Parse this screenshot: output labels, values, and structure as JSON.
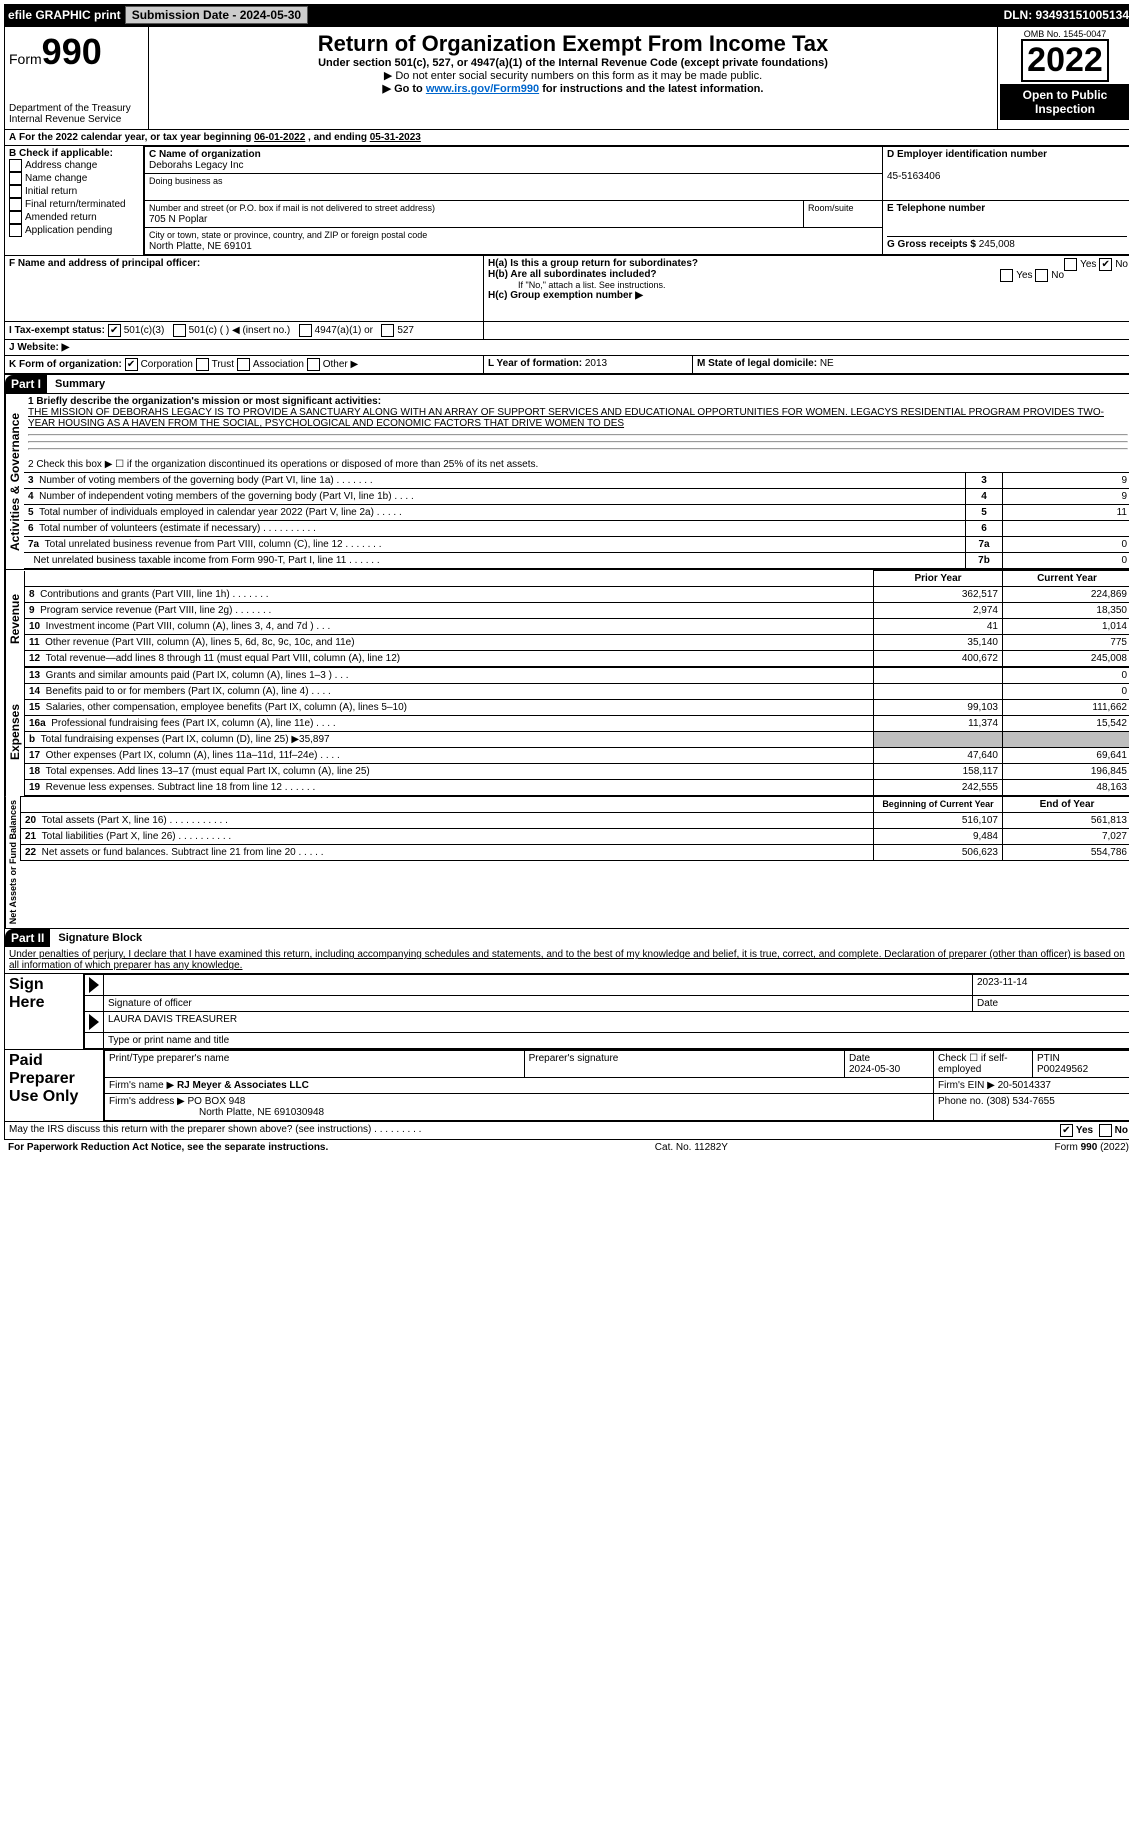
{
  "topbar": {
    "efile": "efile GRAPHIC print",
    "submission_label": "Submission Date - 2024-05-30",
    "dln_label": "DLN: 93493151005134"
  },
  "header": {
    "form_word": "Form",
    "form_num": "990",
    "title": "Return of Organization Exempt From Income Tax",
    "sub1": "Under section 501(c), 527, or 4947(a)(1) of the Internal Revenue Code (except private foundations)",
    "sub2": "▶ Do not enter social security numbers on this form as it may be made public.",
    "sub3_pre": "▶ Go to ",
    "sub3_link": "www.irs.gov/Form990",
    "sub3_post": " for instructions and the latest information.",
    "dept": "Department of the Treasury",
    "irs": "Internal Revenue Service",
    "omb": "OMB No. 1545-0047",
    "year": "2022",
    "open": "Open to Public Inspection"
  },
  "lineA": {
    "text_pre": "For the 2022 calendar year, or tax year beginning ",
    "begin": "06-01-2022",
    "mid": " , and ending ",
    "end": "05-31-2023"
  },
  "boxB": {
    "label": "B Check if applicable:",
    "items": [
      "Address change",
      "Name change",
      "Initial return",
      "Final return/terminated",
      "Amended return",
      "Application pending"
    ]
  },
  "boxC": {
    "label": "C Name of organization",
    "name": "Deborahs Legacy Inc",
    "dba_label": "Doing business as",
    "street_label": "Number and street (or P.O. box if mail is not delivered to street address)",
    "room_label": "Room/suite",
    "street": "705 N Poplar",
    "city_label": "City or town, state or province, country, and ZIP or foreign postal code",
    "city": "North Platte, NE  69101"
  },
  "boxD": {
    "label": "D Employer identification number",
    "value": "45-5163406"
  },
  "boxE": {
    "label": "E Telephone number"
  },
  "boxG": {
    "label": "G Gross receipts $",
    "value": "245,008"
  },
  "boxF": {
    "label": "F Name and address of principal officer:"
  },
  "boxH": {
    "a": "H(a)  Is this a group return for subordinates?",
    "b": "H(b)  Are all subordinates included?",
    "b_note": "If \"No,\" attach a list. See instructions.",
    "c": "H(c)  Group exemption number ▶",
    "yes": "Yes",
    "no": "No"
  },
  "boxI": {
    "label": "I   Tax-exempt status:",
    "opt1": "501(c)(3)",
    "opt2": "501(c) (  ) ◀ (insert no.)",
    "opt3": "4947(a)(1) or",
    "opt4": "527"
  },
  "boxJ": {
    "label": "J   Website: ▶"
  },
  "boxK": {
    "label": "K Form of organization:",
    "opts": [
      "Corporation",
      "Trust",
      "Association",
      "Other ▶"
    ]
  },
  "boxL": {
    "label": "L Year of formation:",
    "value": "2013"
  },
  "boxM": {
    "label": "M State of legal domicile:",
    "value": "NE"
  },
  "part1": {
    "tag": "Part I",
    "title": "Summary"
  },
  "mission": {
    "label": "1  Briefly describe the organization's mission or most significant activities:",
    "text": "THE MISSION OF DEBORAHS LEGACY IS TO PROVIDE A SANCTUARY ALONG WITH AN ARRAY OF SUPPORT SERVICES AND EDUCATIONAL OPPORTUNITIES FOR WOMEN. LEGACYS RESIDENTIAL PROGRAM PROVIDES TWO-YEAR HOUSING AS A HAVEN FROM THE SOCIAL, PSYCHOLOGICAL AND ECONOMIC FACTORS THAT DRIVE WOMEN TO DES"
  },
  "line2": "2   Check this box ▶ ☐ if the organization discontinued its operations or disposed of more than 25% of its net assets.",
  "vlabels": {
    "gov": "Activities & Governance",
    "rev": "Revenue",
    "exp": "Expenses",
    "net": "Net Assets or Fund Balances"
  },
  "gov_rows": [
    {
      "n": "3",
      "t": "Number of voting members of the governing body (Part VI, line 1a)   .     .     .     .     .     .     .",
      "box": "3",
      "v": "9"
    },
    {
      "n": "4",
      "t": "Number of independent voting members of the governing body (Part VI, line 1b)    .     .     .     .",
      "box": "4",
      "v": "9"
    },
    {
      "n": "5",
      "t": "Total number of individuals employed in calendar year 2022 (Part V, line 2a)   .     .     .     .     .",
      "box": "5",
      "v": "11"
    },
    {
      "n": "6",
      "t": "Total number of volunteers (estimate if necessary)    .     .     .     .     .     .     .     .     .     .",
      "box": "6",
      "v": ""
    },
    {
      "n": "7a",
      "t": "Total unrelated business revenue from Part VIII, column (C), line 12  .     .     .     .     .     .     .",
      "box": "7a",
      "v": "0"
    },
    {
      "n": "",
      "t": "Net unrelated business taxable income from Form 990-T, Part I, line 11   .     .     .     .     .     .",
      "box": "7b",
      "v": "0"
    }
  ],
  "col_headers": {
    "prior": "Prior Year",
    "current": "Current Year"
  },
  "rev_rows": [
    {
      "n": "8",
      "t": "Contributions and grants (Part VIII, line 1h)   .     .     .     .     .     .     .",
      "p": "362,517",
      "c": "224,869"
    },
    {
      "n": "9",
      "t": "Program service revenue (Part VIII, line 2g)   .     .     .     .     .     .     .",
      "p": "2,974",
      "c": "18,350"
    },
    {
      "n": "10",
      "t": "Investment income (Part VIII, column (A), lines 3, 4, and 7d )    .     .     .",
      "p": "41",
      "c": "1,014"
    },
    {
      "n": "11",
      "t": "Other revenue (Part VIII, column (A), lines 5, 6d, 8c, 9c, 10c, and 11e)",
      "p": "35,140",
      "c": "775"
    },
    {
      "n": "12",
      "t": "Total revenue—add lines 8 through 11 (must equal Part VIII, column (A), line 12)",
      "p": "400,672",
      "c": "245,008"
    }
  ],
  "exp_rows": [
    {
      "n": "13",
      "t": "Grants and similar amounts paid (Part IX, column (A), lines 1–3 )    .     .     .",
      "p": "",
      "c": "0"
    },
    {
      "n": "14",
      "t": "Benefits paid to or for members (Part IX, column (A), line 4)   .     .     .     .",
      "p": "",
      "c": "0"
    },
    {
      "n": "15",
      "t": "Salaries, other compensation, employee benefits (Part IX, column (A), lines 5–10)",
      "p": "99,103",
      "c": "111,662"
    },
    {
      "n": "16a",
      "t": "Professional fundraising fees (Part IX, column (A), line 11e)    .     .     .     .",
      "p": "11,374",
      "c": "15,542"
    },
    {
      "n": "b",
      "t": "Total fundraising expenses (Part IX, column (D), line 25) ▶35,897",
      "p": "GRAY",
      "c": "GRAY"
    },
    {
      "n": "17",
      "t": "Other expenses (Part IX, column (A), lines 11a–11d, 11f–24e)    .     .     .     .",
      "p": "47,640",
      "c": "69,641"
    },
    {
      "n": "18",
      "t": "Total expenses. Add lines 13–17 (must equal Part IX, column (A), line 25)",
      "p": "158,117",
      "c": "196,845"
    },
    {
      "n": "19",
      "t": "Revenue less expenses. Subtract line 18 from line 12   .     .     .     .     .     .",
      "p": "242,555",
      "c": "48,163"
    }
  ],
  "net_headers": {
    "begin": "Beginning of Current Year",
    "end": "End of Year"
  },
  "net_rows": [
    {
      "n": "20",
      "t": "Total assets (Part X, line 16)   .     .     .     .     .     .     .     .     .     .     .",
      "p": "516,107",
      "c": "561,813"
    },
    {
      "n": "21",
      "t": "Total liabilities (Part X, line 26)    .     .     .     .     .     .     .     .     .     .",
      "p": "9,484",
      "c": "7,027"
    },
    {
      "n": "22",
      "t": "Net assets or fund balances. Subtract line 21 from line 20   .     .     .     .     .",
      "p": "506,623",
      "c": "554,786"
    }
  ],
  "part2": {
    "tag": "Part II",
    "title": "Signature Block"
  },
  "perjury": "Under penalties of perjury, I declare that I have examined this return, including accompanying schedules and statements, and to the best of my knowledge and belief, it is true, correct, and complete. Declaration of preparer (other than officer) is based on all information of which preparer has any knowledge.",
  "sign": {
    "here": "Sign Here",
    "sig_officer": "Signature of officer",
    "date": "Date",
    "date_val": "2023-11-14",
    "name": "LAURA DAVIS  TREASURER",
    "name_label": "Type or print name and title"
  },
  "preparer": {
    "label": "Paid Preparer Use Only",
    "h1": "Print/Type preparer's name",
    "h2": "Preparer's signature",
    "h3": "Date",
    "h3v": "2024-05-30",
    "h4": "Check ☐ if self-employed",
    "h5": "PTIN",
    "h5v": "P00249562",
    "firm_name_l": "Firm's name    ▶",
    "firm_name": "RJ Meyer & Associates LLC",
    "firm_ein_l": "Firm's EIN ▶",
    "firm_ein": "20-5014337",
    "firm_addr_l": "Firm's address ▶",
    "firm_addr": "PO BOX 948",
    "firm_addr2": "North Platte, NE  691030948",
    "phone_l": "Phone no.",
    "phone": "(308) 534-7655"
  },
  "discuss": "May the IRS discuss this return with the preparer shown above? (see instructions)    .     .     .     .     .     .     .     .     .",
  "footer": {
    "left": "For Paperwork Reduction Act Notice, see the separate instructions.",
    "mid": "Cat. No. 11282Y",
    "right": "Form 990 (2022)"
  }
}
